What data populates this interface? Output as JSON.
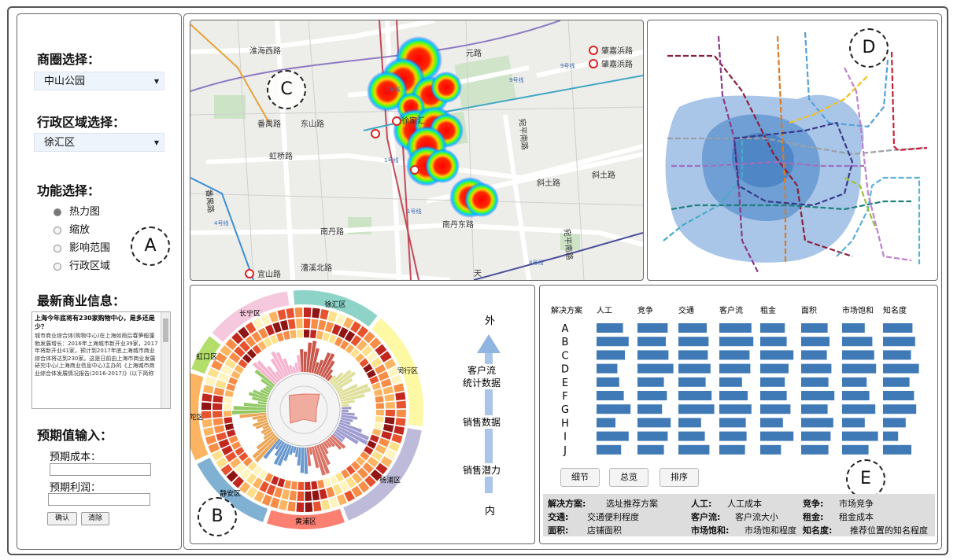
{
  "panel_a": {
    "label": "A",
    "district_select_label": "商圈选择：",
    "district_value": "中山公园",
    "admin_select_label": "行政区域选择：",
    "admin_value": "徐汇区",
    "function_label": "功能选择：",
    "functions": [
      {
        "label": "热力图",
        "selected": true
      },
      {
        "label": "缩放",
        "selected": false
      },
      {
        "label": "影响范围",
        "selected": false
      },
      {
        "label": "行政区域",
        "selected": false
      }
    ],
    "news_label": "最新商业信息：",
    "news_title": "上海今年底将有230家购物中心，是多还是少？",
    "news_body": "城市商业综合体(购物中心)在上海如雨后春笋般蓬勃发展增长：2016年上海城市新开业39家，2017年将新开业41家，预计到2017年底上海城市商业综合体将达到230家。这是日前由上海市商业发展研究中心(上海商业信息中心)主办的《上海城市商业综合体发展情况报告(2016-2017)》(以下简称",
    "expect_label": "预期值输入：",
    "cost_label": "预期成本：",
    "profit_label": "预期利润：",
    "confirm_btn": "确认",
    "clear_btn": "清除"
  },
  "panel_c": {
    "label": "C",
    "roads": [
      "淮海西路",
      "元路",
      "肇嘉浜路",
      "肇嘉浜路",
      "番禺路",
      "东山路",
      "徐家汇",
      "虹桥路",
      "宛平南路",
      "斜土路",
      "斜土路",
      "番禺路",
      "南丹路",
      "南丹东路",
      "宛平南路",
      "漕溪北路",
      "宜山路",
      "天",
      "9号线",
      "9号线",
      "1号线",
      "4号线",
      "1号线",
      "4号线",
      "1号线"
    ]
  },
  "panel_d": {
    "label": "D"
  },
  "panel_b": {
    "label": "B",
    "districts": [
      "长宁区",
      "徐汇区",
      "闵行区",
      "杨浦区",
      "黄浦区",
      "静安区",
      "普陀区",
      "虹口区"
    ],
    "axis_top": "外",
    "axis_bottom": "内",
    "layer_labels": [
      "客户流\n统计数据",
      "销售数据",
      "销售潜力"
    ]
  },
  "panel_e": {
    "label": "E",
    "header_solution": "解决方案",
    "columns": [
      "人工",
      "竞争",
      "交通",
      "客户流",
      "租金",
      "面积",
      "市场饱和",
      "知名度"
    ],
    "rows": [
      "A",
      "B",
      "C",
      "D",
      "E",
      "F",
      "G",
      "H",
      "I",
      "J"
    ],
    "values": [
      [
        0.7,
        0.8,
        0.75,
        0.85,
        0.65,
        0.7,
        0.6,
        0.78
      ],
      [
        0.85,
        0.75,
        0.8,
        0.9,
        0.7,
        0.75,
        0.8,
        0.85
      ],
      [
        0.75,
        0.82,
        0.78,
        0.8,
        0.88,
        0.68,
        0.85,
        0.74
      ],
      [
        0.55,
        0.95,
        0.85,
        0.82,
        0.75,
        0.8,
        0.9,
        0.95
      ],
      [
        0.6,
        0.7,
        0.72,
        0.6,
        0.65,
        0.72,
        0.65,
        0.7
      ],
      [
        0.72,
        0.78,
        0.88,
        0.75,
        0.7,
        0.88,
        0.72,
        0.82
      ],
      [
        0.9,
        0.65,
        0.95,
        0.85,
        0.8,
        0.7,
        0.88,
        0.88
      ],
      [
        0.5,
        0.88,
        0.6,
        0.7,
        0.6,
        0.85,
        0.6,
        0.6
      ],
      [
        0.85,
        0.8,
        0.7,
        0.72,
        0.88,
        0.78,
        0.95,
        0.4
      ],
      [
        0.65,
        0.7,
        0.82,
        0.68,
        0.55,
        0.72,
        0.7,
        0.75
      ]
    ],
    "buttons": [
      "细节",
      "总览",
      "排序"
    ],
    "legend": [
      {
        "key": "解决方案:",
        "value": "选址推荐方案"
      },
      {
        "key": "人工:",
        "value": "人工成本"
      },
      {
        "key": "竞争:",
        "value": "市场竞争"
      },
      {
        "key": "交通:",
        "value": "交通便利程度"
      },
      {
        "key": "客户流:",
        "value": "客户流大小"
      },
      {
        "key": "租金:",
        "value": "租金成本"
      },
      {
        "key": "面积:",
        "value": "店铺面积"
      },
      {
        "key": "市场饱和:",
        "value": "市场饱和程度"
      },
      {
        "key": "知名度:",
        "value": "推荐位置的知名程度"
      }
    ],
    "bar_color": "#3f7ab6"
  }
}
